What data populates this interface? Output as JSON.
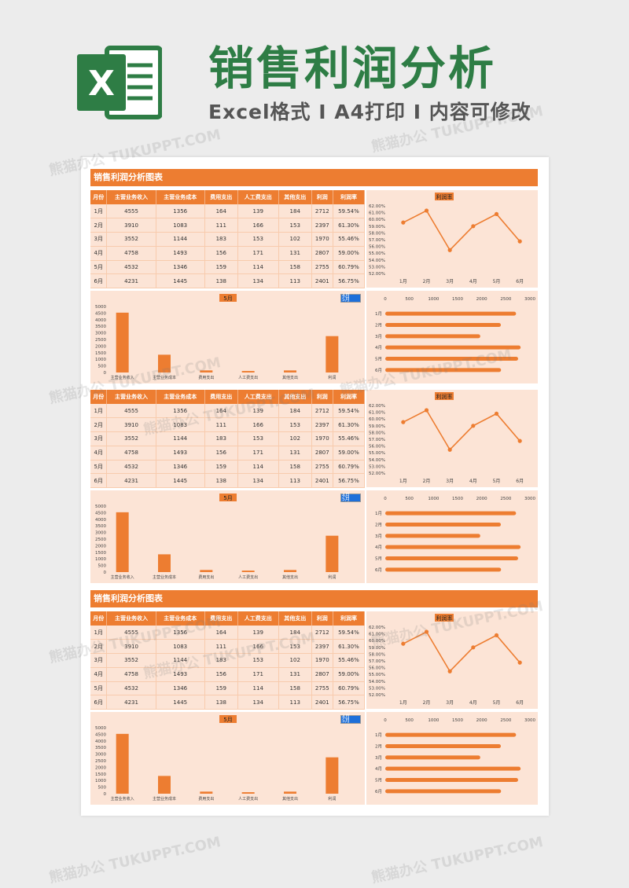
{
  "banner": {
    "title": "销售利润分析",
    "subtitle": "Excel格式 I A4打印 I 内容可修改",
    "logo_letter": "X"
  },
  "sheet_title": "销售利润分析图表",
  "table": {
    "headers": [
      "月份",
      "主营业务收入",
      "主营业务成本",
      "费用支出",
      "人工费支出",
      "其他支出",
      "利润",
      "利润率"
    ],
    "rows": [
      [
        "1月",
        "4555",
        "1356",
        "164",
        "139",
        "184",
        "2712",
        "59.54%"
      ],
      [
        "2月",
        "3910",
        "1083",
        "111",
        "166",
        "153",
        "2397",
        "61.30%"
      ],
      [
        "3月",
        "3552",
        "1144",
        "183",
        "153",
        "102",
        "1970",
        "55.46%"
      ],
      [
        "4月",
        "4758",
        "1493",
        "156",
        "171",
        "131",
        "2807",
        "59.00%"
      ],
      [
        "5月",
        "4532",
        "1346",
        "159",
        "114",
        "158",
        "2755",
        "60.79%"
      ],
      [
        "6月",
        "4231",
        "1445",
        "138",
        "134",
        "113",
        "2401",
        "56.75%"
      ]
    ]
  },
  "selector": {
    "options": [
      "4月",
      "5月"
    ]
  },
  "chart_data": [
    {
      "type": "line",
      "title": "利润率",
      "categories": [
        "1月",
        "2月",
        "3月",
        "4月",
        "5月",
        "6月"
      ],
      "values": [
        59.54,
        61.3,
        55.46,
        59.0,
        60.79,
        56.75
      ],
      "ylim": [
        52,
        62
      ],
      "yticks": [
        "62.00%",
        "61.00%",
        "60.00%",
        "59.00%",
        "58.00%",
        "57.00%",
        "56.00%",
        "55.00%",
        "54.00%",
        "53.00%",
        "52.00%"
      ],
      "color": "#ed7d31"
    },
    {
      "type": "bar",
      "title": "5月",
      "categories": [
        "主营业务收入",
        "主营业务成本",
        "费用支出",
        "人工费支出",
        "其他支出",
        "利润"
      ],
      "values": [
        4532,
        1346,
        159,
        114,
        158,
        2755
      ],
      "ylim": [
        0,
        5000
      ],
      "yticks": [
        "5000",
        "4500",
        "4000",
        "3500",
        "3000",
        "2500",
        "2000",
        "1500",
        "1000",
        "500",
        "0"
      ],
      "color": "#ed7d31"
    },
    {
      "type": "bar",
      "orientation": "horizontal",
      "categories": [
        "1月",
        "2月",
        "3月",
        "4月",
        "5月",
        "6月"
      ],
      "values": [
        2712,
        2397,
        1970,
        2807,
        2755,
        2401
      ],
      "xlim": [
        0,
        3000
      ],
      "xticks": [
        "0",
        "500",
        "1000",
        "1500",
        "2000",
        "2500",
        "3000"
      ],
      "color": "#ed7d31"
    }
  ],
  "watermark": "熊猫办公 TUKUPPT.COM"
}
